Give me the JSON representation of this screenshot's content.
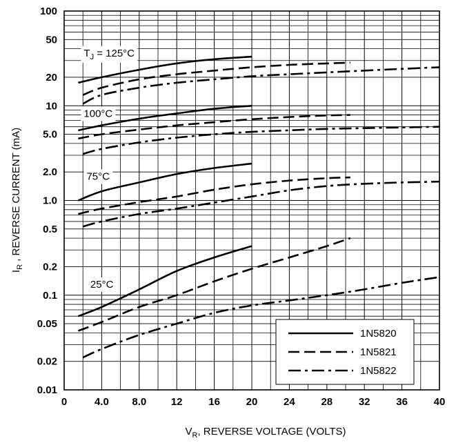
{
  "chart_data": {
    "type": "line",
    "xlabel_main": "V",
    "xlabel_sub": "R",
    "xlabel_rest": ", REVERSE VOLTAGE (VOLTS)",
    "ylabel_main": "I",
    "ylabel_sub": "R",
    "ylabel_rest": " , REVERSE CURRENT (mA)",
    "xlim": [
      0,
      40
    ],
    "ylim": [
      0.01,
      100
    ],
    "yscale": "log",
    "x_ticks": [
      0,
      4,
      8,
      12,
      16,
      20,
      24,
      28,
      32,
      36,
      40
    ],
    "x_tick_labels": [
      "0",
      "4.0",
      "8.0",
      "12",
      "16",
      "20",
      "24",
      "28",
      "32",
      "36",
      "40"
    ],
    "y_ticks": [
      0.01,
      0.02,
      0.05,
      0.1,
      0.2,
      0.5,
      1,
      2,
      5,
      10,
      20,
      50,
      100
    ],
    "y_tick_labels": [
      "0.01",
      "0.02",
      "0.05",
      "0.1",
      "0.2",
      "0.5",
      "1.0",
      "2.0",
      "5.0",
      "10",
      "20",
      "50",
      "100"
    ],
    "grid": true,
    "legend_position": "bottom-right",
    "legend": [
      {
        "name": "1N5820",
        "style": "solid"
      },
      {
        "name": "1N5821",
        "style": "dashed"
      },
      {
        "name": "1N5822",
        "style": "dashdot"
      }
    ],
    "temperature_labels": [
      {
        "text_main": "T",
        "text_sub": "J",
        "text_rest": " = 125°C",
        "x": 1.5,
        "y": 36
      },
      {
        "text_main": "100°C",
        "x": 1.5,
        "y": 8.3
      },
      {
        "text_main": "75°C",
        "x": 1.8,
        "y": 1.8
      },
      {
        "text_main": "25°C",
        "x": 2.2,
        "y": 0.13
      }
    ],
    "series": [
      {
        "name": "1N5820",
        "temperature": "125°C",
        "style": "solid",
        "x": [
          1.5,
          4,
          8,
          12,
          16,
          20
        ],
        "y": [
          17.5,
          20,
          24,
          28,
          31,
          33
        ]
      },
      {
        "name": "1N5821",
        "temperature": "125°C",
        "style": "dashed",
        "x": [
          2,
          4,
          8,
          12,
          16,
          20,
          24,
          28,
          30.5
        ],
        "y": [
          13,
          15.5,
          19,
          21.5,
          23.5,
          25.5,
          27,
          28,
          28.5
        ]
      },
      {
        "name": "1N5822",
        "temperature": "125°C",
        "style": "dashdot",
        "x": [
          2,
          4,
          8,
          12,
          16,
          20,
          24,
          28,
          32,
          36,
          40
        ],
        "y": [
          10.5,
          13,
          15.5,
          17.5,
          19,
          20.5,
          21.5,
          22.5,
          23.5,
          24.5,
          25.5
        ]
      },
      {
        "name": "1N5820",
        "temperature": "100°C",
        "style": "solid",
        "x": [
          1.5,
          4,
          8,
          12,
          16,
          20
        ],
        "y": [
          5.5,
          6.2,
          7.3,
          8.3,
          9.3,
          10
        ]
      },
      {
        "name": "1N5821",
        "temperature": "100°C",
        "style": "dashed",
        "x": [
          1.5,
          4,
          8,
          12,
          16,
          20,
          24,
          28,
          30.5
        ],
        "y": [
          4.5,
          5,
          5.6,
          6.2,
          6.7,
          7.2,
          7.6,
          7.9,
          8
        ]
      },
      {
        "name": "1N5822",
        "temperature": "100°C",
        "style": "dashdot",
        "x": [
          2,
          4,
          8,
          12,
          16,
          20,
          24,
          28,
          32,
          36,
          40
        ],
        "y": [
          3.1,
          3.5,
          4.1,
          4.6,
          5,
          5.3,
          5.5,
          5.7,
          5.8,
          5.9,
          6
        ]
      },
      {
        "name": "1N5820",
        "temperature": "75°C",
        "style": "solid",
        "x": [
          1.5,
          4,
          8,
          12,
          16,
          20
        ],
        "y": [
          1,
          1.25,
          1.55,
          1.9,
          2.2,
          2.45
        ]
      },
      {
        "name": "1N5821",
        "temperature": "75°C",
        "style": "dashed",
        "x": [
          1.5,
          4,
          8,
          12,
          16,
          20,
          24,
          28,
          30.5
        ],
        "y": [
          0.72,
          0.82,
          0.96,
          1.1,
          1.3,
          1.48,
          1.62,
          1.72,
          1.75
        ]
      },
      {
        "name": "1N5822",
        "temperature": "75°C",
        "style": "dashdot",
        "x": [
          2,
          4,
          8,
          12,
          16,
          20,
          24,
          28,
          32,
          36,
          40
        ],
        "y": [
          0.53,
          0.6,
          0.72,
          0.82,
          0.95,
          1.1,
          1.28,
          1.42,
          1.5,
          1.55,
          1.58
        ]
      },
      {
        "name": "1N5820",
        "temperature": "25°C",
        "style": "solid",
        "x": [
          1.5,
          4,
          8,
          12,
          16,
          20
        ],
        "y": [
          0.06,
          0.075,
          0.115,
          0.18,
          0.25,
          0.33
        ]
      },
      {
        "name": "1N5821",
        "temperature": "25°C",
        "style": "dashed",
        "x": [
          1.5,
          4,
          8,
          12,
          16,
          20,
          24,
          28,
          30.5
        ],
        "y": [
          0.042,
          0.052,
          0.075,
          0.1,
          0.14,
          0.19,
          0.25,
          0.33,
          0.4
        ]
      },
      {
        "name": "1N5822",
        "temperature": "25°C",
        "style": "dashdot",
        "x": [
          2,
          4,
          8,
          12,
          16,
          20,
          24,
          28,
          32,
          36,
          40
        ],
        "y": [
          0.022,
          0.027,
          0.038,
          0.05,
          0.065,
          0.078,
          0.088,
          0.1,
          0.115,
          0.135,
          0.155
        ]
      }
    ]
  }
}
